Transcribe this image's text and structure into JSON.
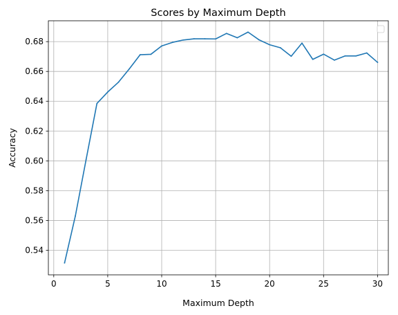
{
  "chart_data": {
    "type": "line",
    "title": "Scores by Maximum Depth",
    "xlabel": "Maximum Depth",
    "ylabel": "Accuracy",
    "xlim": [
      -0.5,
      31.0
    ],
    "ylim": [
      0.5235,
      0.694
    ],
    "grid": true,
    "legend": {
      "placement": "top-right",
      "entries": []
    },
    "x_ticks": [
      0,
      5,
      10,
      15,
      20,
      25,
      30
    ],
    "y_ticks": [
      0.54,
      0.56,
      0.58,
      0.6,
      0.62,
      0.64,
      0.66,
      0.68
    ],
    "x_tick_labels": [
      "0",
      "5",
      "10",
      "15",
      "20",
      "25",
      "30"
    ],
    "y_tick_labels": [
      "0.54",
      "0.56",
      "0.58",
      "0.60",
      "0.62",
      "0.64",
      "0.66",
      "0.68"
    ],
    "series": [
      {
        "color": "#1f77b4",
        "x": [
          1,
          2,
          3,
          4,
          5,
          6,
          7,
          8,
          9,
          10,
          11,
          12,
          13,
          14,
          15,
          16,
          17,
          18,
          19,
          20,
          21,
          22,
          23,
          24,
          25,
          26,
          27,
          28,
          29,
          30
        ],
        "y": [
          0.5315,
          0.563,
          0.601,
          0.6385,
          0.6462,
          0.6528,
          0.6617,
          0.6712,
          0.6715,
          0.6771,
          0.6795,
          0.6811,
          0.6819,
          0.6819,
          0.6818,
          0.6855,
          0.6826,
          0.6864,
          0.6813,
          0.6779,
          0.6759,
          0.6702,
          0.679,
          0.6681,
          0.6716,
          0.6676,
          0.6704,
          0.6704,
          0.6724,
          0.6661
        ]
      }
    ]
  }
}
